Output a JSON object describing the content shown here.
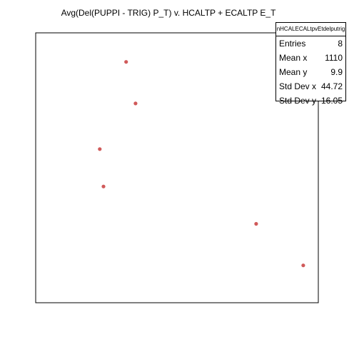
{
  "chart_data": {
    "type": "scatter",
    "title": "Avg(Del(PUPPI - TRIG) P_T) v. HCALTP + ECALTP E_T",
    "xlabel": "",
    "ylabel": "",
    "xlim": [
      1040,
      1190
    ],
    "ylim": [
      -25,
      40
    ],
    "grid": false,
    "axes_visible": false,
    "marker_color": "#d05a5a",
    "points": [
      {
        "x": 1088,
        "y": 33
      },
      {
        "x": 1093,
        "y": 23
      },
      {
        "x": 1074,
        "y": 12
      },
      {
        "x": 1076,
        "y": 3
      },
      {
        "x": 1157,
        "y": -6
      },
      {
        "x": 1182,
        "y": -16
      }
    ]
  },
  "stats_box": {
    "name": "nHCALECALtpvEtdelputrig",
    "rows": [
      {
        "label": "Entries",
        "value": "8"
      },
      {
        "label": "Mean x",
        "value": "1110"
      },
      {
        "label": "Mean y",
        "value": "9.9"
      },
      {
        "label": "Std Dev x",
        "value": "44.72"
      },
      {
        "label": "Std Dev y",
        "value": "16.05"
      }
    ]
  }
}
